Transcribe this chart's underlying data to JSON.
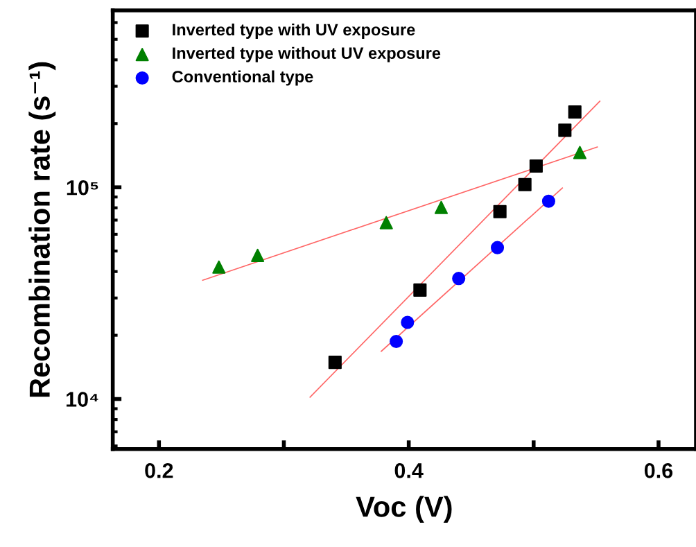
{
  "chart_data": {
    "type": "scatter",
    "xlabel": "Voc (V)",
    "ylabel": "Recombination rate (s⁻¹)",
    "log": "y",
    "xlim": [
      0.163,
      0.63
    ],
    "ylim": [
      5800,
      685000
    ],
    "xticks": [
      0.2,
      {
        "value": 0.3,
        "label": null
      },
      0.4,
      {
        "value": 0.5,
        "label": null
      },
      0.6
    ],
    "yticks": [
      {
        "value": 10000,
        "label": "10⁴"
      },
      {
        "value": 100000,
        "label": "10⁵"
      }
    ],
    "grid": false,
    "legend": "top left",
    "series": [
      {
        "name": "Inverted type with UV exposure",
        "marker": "square",
        "color": "#000000",
        "x": [
          0.341,
          0.409,
          0.473,
          0.493,
          0.502,
          0.525,
          0.533
        ],
        "values": [
          14900,
          32700,
          76800,
          103000,
          126000,
          186000,
          227000
        ]
      },
      {
        "name": "Inverted type without UV exposure",
        "marker": "triangle",
        "color": "#008000",
        "x": [
          0.248,
          0.279,
          0.382,
          0.426,
          0.537
        ],
        "values": [
          42000,
          47700,
          68100,
          80300,
          146000
        ]
      },
      {
        "name": "Conventional type",
        "marker": "circle",
        "color": "#0000ff",
        "x": [
          0.39,
          0.399,
          0.44,
          0.471,
          0.512
        ],
        "values": [
          18700,
          23000,
          37100,
          51900,
          86000
        ]
      },
      {
        "type": "line",
        "color": "#ff6666",
        "marker": "none",
        "x": [
          0.321,
          0.553
        ],
        "values": [
          10200,
          255000
        ]
      },
      {
        "type": "line",
        "color": "#ff6666",
        "marker": "none",
        "x": [
          0.235,
          0.551
        ],
        "values": [
          36400,
          155000
        ]
      },
      {
        "type": "line",
        "color": "#ff6666",
        "marker": "none",
        "x": [
          0.378,
          0.523
        ],
        "values": [
          16800,
          99300
        ]
      }
    ]
  }
}
